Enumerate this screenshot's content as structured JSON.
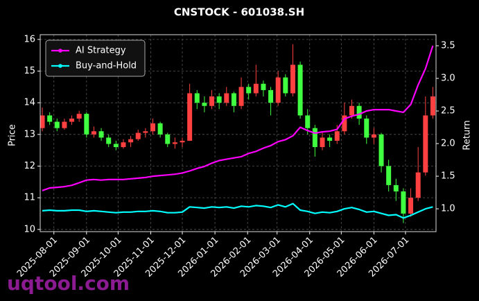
{
  "chart_data": {
    "type": "candlestick",
    "title": "CNSTOCK - 601038.SH",
    "ylabel": "Price",
    "y2label": "Return",
    "watermark": "uqtool.com",
    "x": [
      "2025-07-21",
      "2025-07-28",
      "2025-08-04",
      "2025-08-11",
      "2025-08-18",
      "2025-08-25",
      "2025-09-01",
      "2025-09-08",
      "2025-09-15",
      "2025-09-22",
      "2025-09-29",
      "2025-10-06",
      "2025-10-13",
      "2025-10-20",
      "2025-10-27",
      "2025-11-03",
      "2025-11-10",
      "2025-11-17",
      "2025-11-24",
      "2025-12-01",
      "2025-12-08",
      "2025-12-15",
      "2025-12-22",
      "2025-12-29",
      "2026-01-05",
      "2026-01-12",
      "2026-01-19",
      "2026-01-26",
      "2026-02-02",
      "2026-02-09",
      "2026-02-16",
      "2026-02-23",
      "2026-03-02",
      "2026-03-09",
      "2026-03-16",
      "2026-03-23",
      "2026-03-30",
      "2026-04-06",
      "2026-04-13",
      "2026-04-20",
      "2026-04-27",
      "2026-05-04",
      "2026-05-11",
      "2026-05-18",
      "2026-05-25",
      "2026-06-01",
      "2026-06-08",
      "2026-06-15",
      "2026-06-22",
      "2026-06-29",
      "2026-07-06",
      "2026-07-13",
      "2026-07-20",
      "2026-07-27"
    ],
    "ohlc": {
      "open": [
        13.2,
        13.6,
        13.4,
        13.2,
        13.4,
        13.5,
        13.65,
        13.0,
        13.1,
        12.9,
        12.7,
        12.6,
        12.75,
        12.85,
        13.05,
        13.1,
        13.35,
        13.0,
        12.7,
        12.75,
        12.8,
        14.3,
        14.0,
        13.9,
        14.2,
        14.0,
        14.3,
        13.9,
        14.5,
        14.3,
        14.6,
        14.4,
        14.0,
        14.8,
        14.3,
        15.2,
        13.6,
        13.2,
        12.6,
        12.9,
        12.8,
        13.1,
        13.6,
        13.9,
        13.5,
        12.9,
        13.0,
        12.0,
        11.4,
        11.2,
        10.5,
        11.0,
        11.8,
        13.6
      ],
      "high": [
        13.85,
        13.7,
        13.5,
        13.5,
        13.6,
        13.75,
        13.7,
        13.25,
        13.2,
        13.0,
        12.8,
        12.85,
        12.95,
        13.15,
        13.2,
        13.5,
        13.4,
        13.05,
        12.9,
        12.9,
        14.6,
        14.4,
        14.2,
        14.4,
        14.3,
        14.5,
        14.35,
        14.8,
        14.6,
        15.2,
        14.7,
        14.5,
        15.0,
        14.9,
        15.85,
        15.3,
        13.8,
        13.3,
        13.1,
        13.0,
        13.3,
        14.0,
        14.1,
        14.0,
        13.6,
        13.2,
        13.05,
        12.2,
        11.6,
        11.3,
        11.3,
        12.6,
        14.2,
        14.5
      ],
      "low": [
        13.1,
        13.3,
        13.1,
        13.15,
        13.3,
        13.4,
        12.9,
        12.9,
        12.8,
        12.6,
        12.5,
        12.55,
        12.6,
        12.8,
        12.9,
        13.0,
        12.9,
        12.6,
        12.55,
        12.6,
        12.8,
        13.8,
        13.7,
        13.8,
        13.8,
        13.9,
        13.7,
        13.8,
        14.1,
        14.2,
        14.2,
        13.6,
        13.9,
        14.2,
        14.2,
        13.5,
        13.0,
        12.3,
        12.5,
        12.6,
        12.7,
        13.0,
        13.5,
        13.3,
        12.7,
        12.7,
        11.8,
        11.2,
        10.9,
        10.2,
        10.4,
        10.9,
        11.7,
        13.5
      ],
      "close": [
        13.6,
        13.4,
        13.2,
        13.4,
        13.5,
        13.65,
        13.0,
        13.1,
        12.9,
        12.7,
        12.6,
        12.75,
        12.85,
        13.05,
        13.1,
        13.35,
        13.0,
        12.7,
        12.75,
        12.8,
        14.3,
        14.0,
        13.9,
        14.2,
        14.0,
        14.3,
        13.9,
        14.5,
        14.3,
        14.6,
        14.4,
        14.0,
        14.8,
        14.3,
        15.2,
        13.6,
        13.2,
        12.6,
        12.9,
        12.8,
        13.1,
        13.6,
        13.9,
        13.5,
        12.9,
        13.0,
        12.0,
        11.4,
        11.2,
        10.5,
        11.0,
        11.8,
        13.6,
        14.2
      ]
    },
    "up_color": "#ff4040",
    "down_color": "#40ff40",
    "series": [
      {
        "name": "AI Strategy",
        "color": "#ff00ff",
        "axis": "y2",
        "values": [
          1.28,
          1.32,
          1.33,
          1.34,
          1.36,
          1.4,
          1.44,
          1.45,
          1.44,
          1.45,
          1.45,
          1.45,
          1.46,
          1.47,
          1.48,
          1.5,
          1.51,
          1.52,
          1.53,
          1.55,
          1.58,
          1.62,
          1.65,
          1.7,
          1.74,
          1.76,
          1.78,
          1.8,
          1.85,
          1.88,
          1.93,
          1.97,
          2.03,
          2.06,
          2.12,
          2.25,
          2.2,
          2.16,
          2.18,
          2.19,
          2.22,
          2.38,
          2.42,
          2.45,
          2.5,
          2.52,
          2.52,
          2.52,
          2.5,
          2.48,
          2.6,
          2.9,
          3.15,
          3.5
        ]
      },
      {
        "name": "Buy-and-Hold",
        "color": "#00ffff",
        "axis": "y2",
        "values": [
          0.97,
          0.98,
          0.97,
          0.97,
          0.98,
          0.98,
          0.96,
          0.97,
          0.96,
          0.95,
          0.94,
          0.95,
          0.95,
          0.96,
          0.96,
          0.97,
          0.96,
          0.94,
          0.94,
          0.95,
          1.03,
          1.02,
          1.01,
          1.03,
          1.02,
          1.03,
          1.01,
          1.04,
          1.03,
          1.05,
          1.04,
          1.02,
          1.06,
          1.03,
          1.08,
          0.98,
          0.96,
          0.93,
          0.95,
          0.94,
          0.96,
          1.0,
          1.02,
          0.99,
          0.95,
          0.96,
          0.93,
          0.9,
          0.91,
          0.86,
          0.9,
          0.95,
          1.0,
          1.03
        ]
      }
    ],
    "xlim": [
      "2025-07-19",
      "2026-07-30"
    ],
    "xticks": [
      "2025-08-01",
      "2025-09-01",
      "2025-10-01",
      "2025-11-01",
      "2025-12-01",
      "2026-01-01",
      "2026-02-01",
      "2026-03-01",
      "2026-04-01",
      "2026-05-01",
      "2026-06-01",
      "2026-07-01"
    ],
    "ylim": [
      9.93,
      16.15
    ],
    "yticks": [
      10,
      11,
      12,
      13,
      14,
      15,
      16
    ],
    "y2lim": [
      0.65,
      3.67
    ],
    "y2ticks": [
      {
        "value": 1.0,
        "label": "1.0"
      },
      {
        "value": 1.5,
        "label": "1.5"
      },
      {
        "value": 2.0,
        "label": "2.0"
      },
      {
        "value": 2.5,
        "label": "2.5"
      },
      {
        "value": 3.0,
        "label": "3.0"
      },
      {
        "value": 3.5,
        "label": "3.5"
      }
    ],
    "grid": true,
    "legend": "upper left"
  }
}
